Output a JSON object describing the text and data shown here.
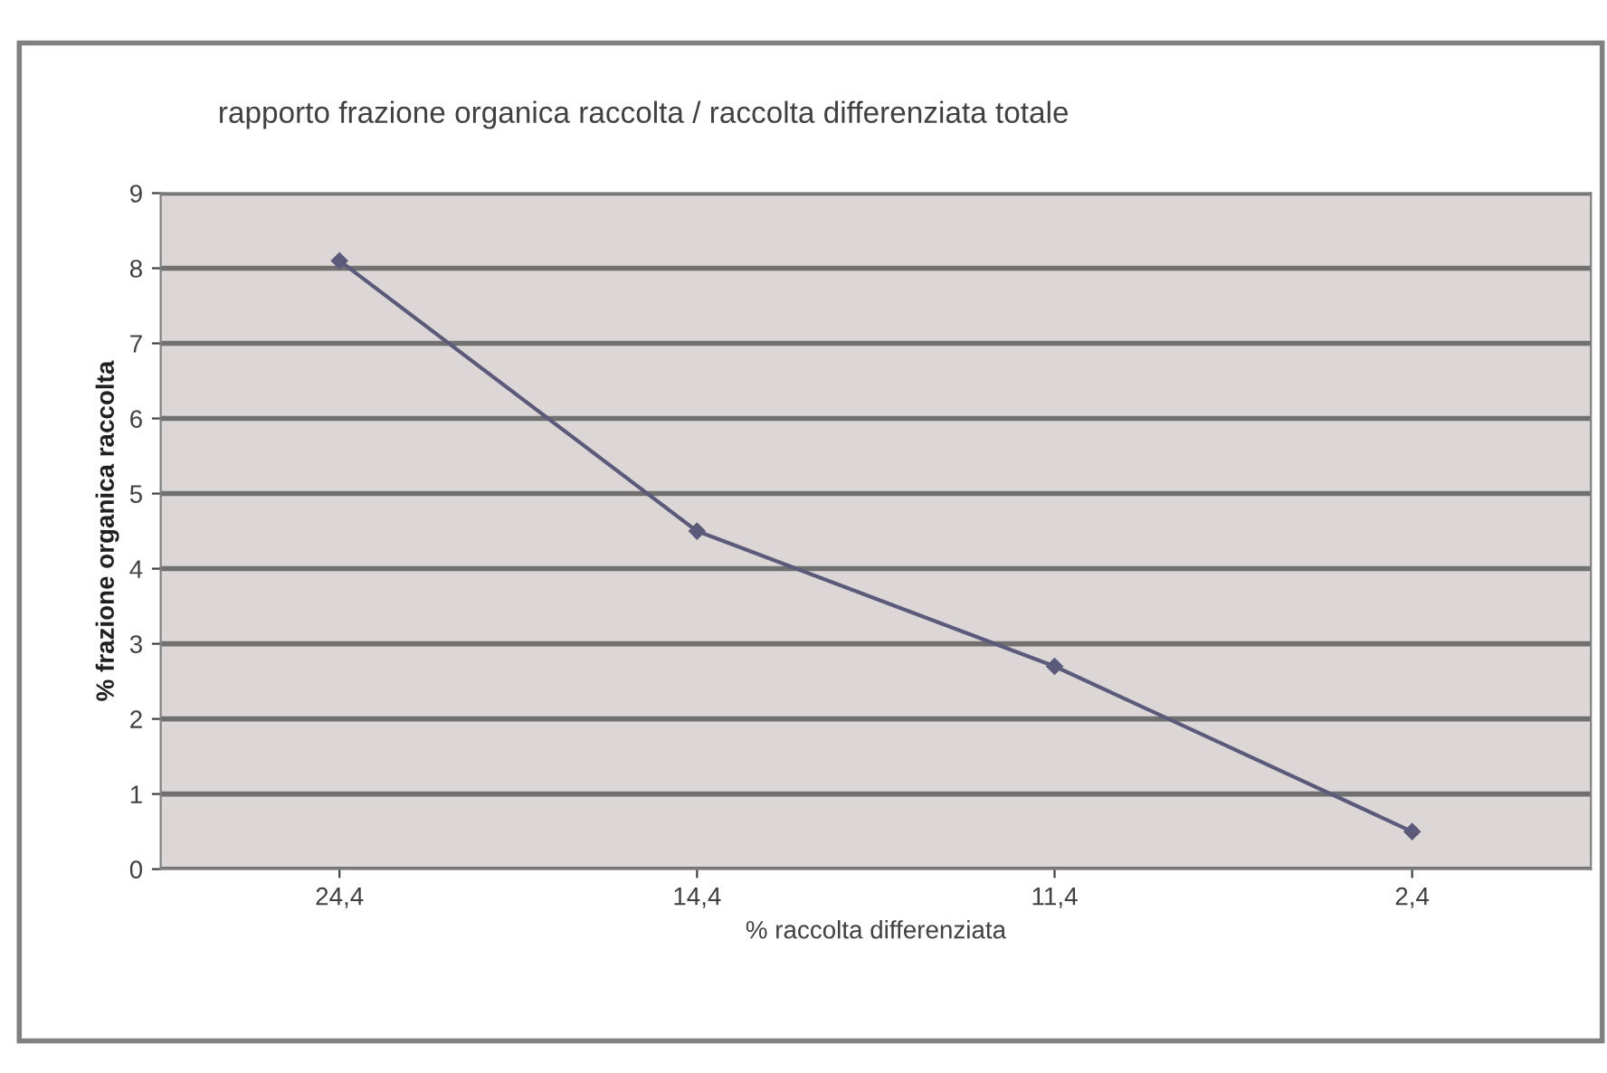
{
  "chart_data": {
    "type": "line",
    "title": "rapporto frazione organica raccolta / raccolta differenziata totale",
    "xlabel": "% raccolta differenziata",
    "ylabel": "% frazione organica raccolta",
    "categories": [
      "24,4",
      "14,4",
      "11,4",
      "2,4"
    ],
    "series": [
      {
        "color": "#5c5a7a",
        "values": [
          8.1,
          4.5,
          2.7,
          0.5
        ]
      }
    ],
    "ylim": [
      0,
      9
    ],
    "yticks": [
      0,
      1,
      2,
      3,
      4,
      5,
      6,
      7,
      8,
      9
    ],
    "grid": "y",
    "marker": "diamond",
    "line_style": "solid"
  }
}
